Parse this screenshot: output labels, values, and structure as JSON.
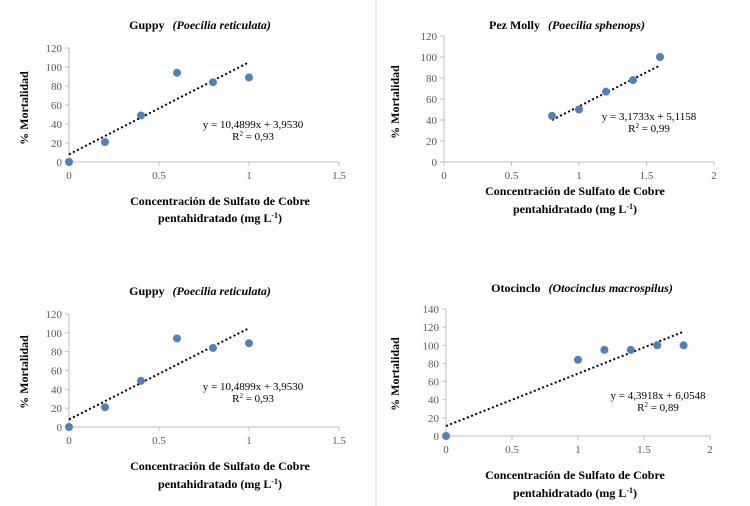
{
  "chart_data": [
    {
      "type": "scatter",
      "title": "Guppy",
      "title_species": "(Poecilia reticulata)",
      "xlabel_line1": "Concentración de Sulfato de Cobre",
      "xlabel_line2": "pentahidratado (mg L",
      "xlabel_sup": "-1",
      "xlabel_close": ")",
      "ylabel": "% Mortalidad",
      "x": [
        0,
        0.2,
        0.4,
        0.6,
        0.8,
        1.0
      ],
      "y": [
        0,
        21,
        49,
        94,
        84,
        89
      ],
      "xlim": [
        0,
        1.5
      ],
      "ylim": [
        0,
        120
      ],
      "xticks": [
        0,
        0.5,
        1,
        1.5
      ],
      "xtick_labels": [
        "0",
        "0.5",
        "1",
        "1.5"
      ],
      "yticks": [
        0,
        20,
        40,
        60,
        80,
        100,
        120
      ],
      "ytick_labels": [
        "0",
        "20",
        "40",
        "60",
        "80",
        "100",
        "120"
      ],
      "trendline": {
        "x": [
          0,
          1.0
        ],
        "y": [
          8,
          105
        ]
      },
      "equation": "y = 10,4899x + 3,9530",
      "r2_label": "R",
      "r2_sup": "2",
      "r2_value": " = 0,93",
      "marker_color": "#4f81bd"
    },
    {
      "type": "scatter",
      "title": "Pez Molly",
      "title_species": "(Poecilia sphenops)",
      "xlabel_line1": "Concentración de Sulfato de Cobre",
      "xlabel_line2": "pentahidratado (mg L",
      "xlabel_sup": "-1",
      "xlabel_close": ")",
      "ylabel": "% Mortalidad",
      "x": [
        0.8,
        1.0,
        1.2,
        1.4,
        1.6
      ],
      "y": [
        44,
        50,
        67,
        78,
        100
      ],
      "xlim": [
        0,
        2
      ],
      "ylim": [
        0,
        120
      ],
      "xticks": [
        0,
        0.5,
        1,
        1.5,
        2
      ],
      "xtick_labels": [
        "0",
        "0.5",
        "1",
        "1.5",
        "2"
      ],
      "yticks": [
        0,
        20,
        40,
        60,
        80,
        100,
        120
      ],
      "ytick_labels": [
        "0",
        "20",
        "40",
        "60",
        "80",
        "100",
        "120"
      ],
      "trendline": {
        "x": [
          0.8,
          1.6
        ],
        "y": [
          40,
          92
        ]
      },
      "equation": "y = 3,1733x + 5,1158",
      "r2_label": "R",
      "r2_sup": "2",
      "r2_value": " = 0,99",
      "marker_color": "#4f81bd"
    },
    {
      "type": "scatter",
      "title": "Guppy",
      "title_species": "(Poecilia reticulata)",
      "xlabel_line1": "Concentración de Sulfato de Cobre",
      "xlabel_line2": "pentahidratado (mg L",
      "xlabel_sup": "-1",
      "xlabel_close": ")",
      "ylabel": "% Mortalidad",
      "x": [
        0,
        0.2,
        0.4,
        0.6,
        0.8,
        1.0
      ],
      "y": [
        0,
        21,
        49,
        94,
        84,
        89
      ],
      "xlim": [
        0,
        1.5
      ],
      "ylim": [
        0,
        120
      ],
      "xticks": [
        0,
        0.5,
        1,
        1.5
      ],
      "xtick_labels": [
        "0",
        "0.5",
        "1",
        "1.5"
      ],
      "yticks": [
        0,
        20,
        40,
        60,
        80,
        100,
        120
      ],
      "ytick_labels": [
        "0",
        "20",
        "40",
        "60",
        "80",
        "100",
        "120"
      ],
      "trendline": {
        "x": [
          0,
          1.0
        ],
        "y": [
          8,
          105
        ]
      },
      "equation": "y = 10,4899x + 3,9530",
      "r2_label": "R",
      "r2_sup": "2",
      "r2_value": " = 0,93",
      "marker_color": "#4f81bd"
    },
    {
      "type": "scatter",
      "title": "Otocinclo",
      "title_species": "(Otocinclus macrospilus)",
      "xlabel_line1": "Concentración de Sulfato de Cobre",
      "xlabel_line2": "pentahidratado (mg L",
      "xlabel_sup": "-1",
      "xlabel_close": ")",
      "ylabel": "% Mortalidad",
      "x": [
        0,
        1.0,
        1.2,
        1.4,
        1.6,
        1.8
      ],
      "y": [
        0,
        84,
        95,
        95,
        100,
        100
      ],
      "xlim": [
        0,
        2
      ],
      "ylim": [
        0,
        140
      ],
      "xticks": [
        0,
        0.5,
        1,
        1.5,
        2
      ],
      "xtick_labels": [
        "0",
        "0.5",
        "1",
        "1.5",
        "2"
      ],
      "yticks": [
        0,
        20,
        40,
        60,
        80,
        100,
        120,
        140
      ],
      "ytick_labels": [
        "0",
        "20",
        "40",
        "60",
        "80",
        "100",
        "120",
        "140"
      ],
      "trendline": {
        "x": [
          0,
          1.8
        ],
        "y": [
          11,
          115
        ]
      },
      "equation": "y = 4,3918x + 6,0548",
      "r2_label": "R",
      "r2_sup": "2",
      "r2_value": " = 0,89",
      "marker_color": "#4f81bd"
    }
  ]
}
